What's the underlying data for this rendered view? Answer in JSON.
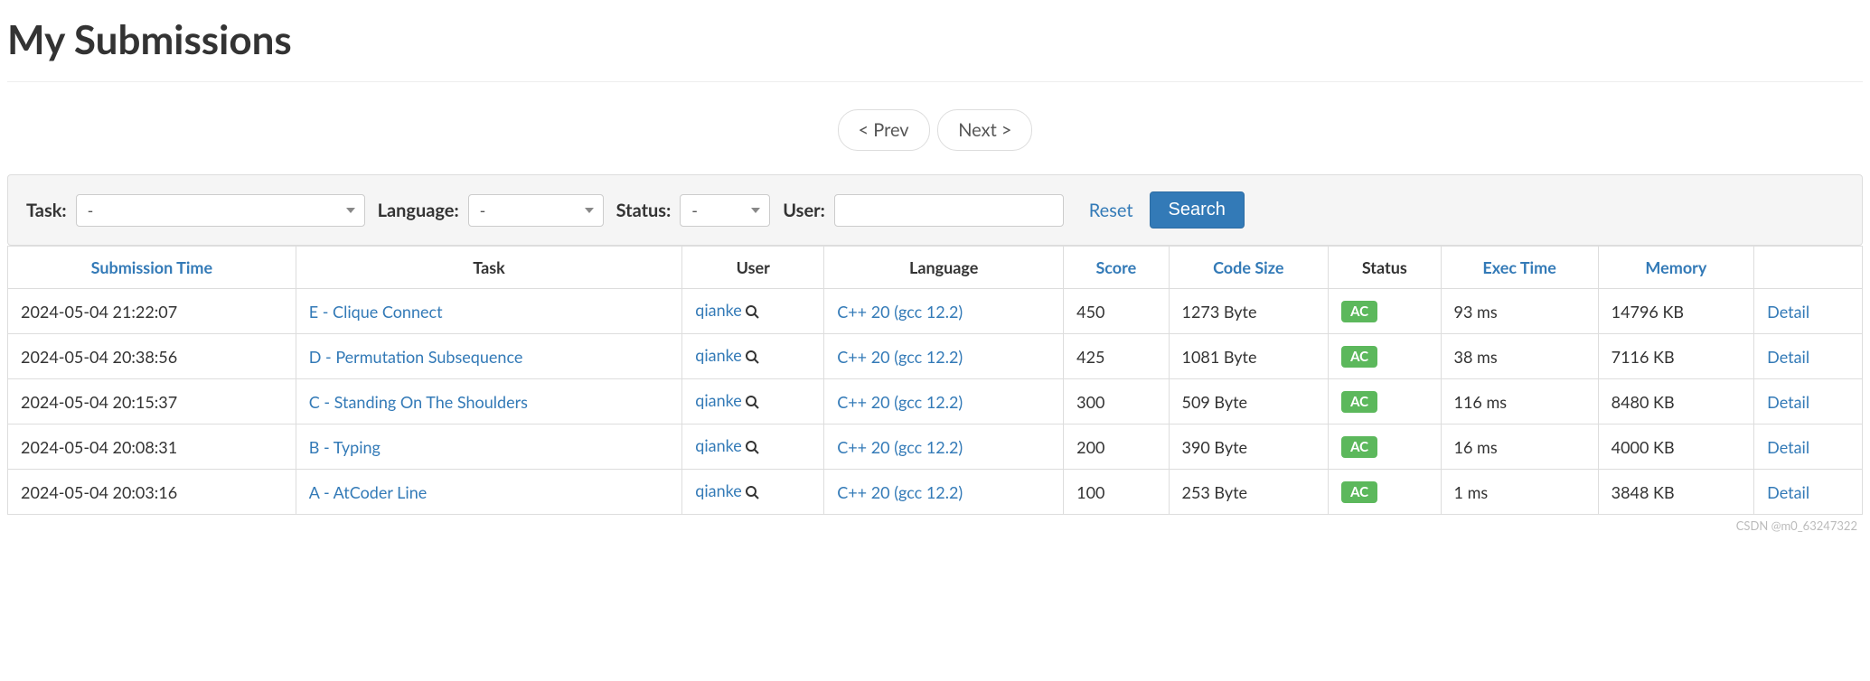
{
  "page_title": "My Submissions",
  "pager": {
    "prev": "< Prev",
    "next": "Next >"
  },
  "filters": {
    "task_label": "Task:",
    "task_value": "-",
    "language_label": "Language:",
    "language_value": "-",
    "status_label": "Status:",
    "status_value": "-",
    "user_label": "User:",
    "user_value": "",
    "reset_label": "Reset",
    "search_label": "Search"
  },
  "columns": {
    "submission_time": "Submission Time",
    "task": "Task",
    "user": "User",
    "language": "Language",
    "score": "Score",
    "code_size": "Code Size",
    "status": "Status",
    "exec_time": "Exec Time",
    "memory": "Memory"
  },
  "status_colors": {
    "AC": "#5cb85c"
  },
  "link_color": "#337ab7",
  "search_btn_color": "#337ab7",
  "rows": [
    {
      "time": "2024-05-04 21:22:07",
      "task": "E - Clique Connect",
      "user": "qianke",
      "language": "C++ 20 (gcc 12.2)",
      "score": "450",
      "code_size": "1273 Byte",
      "status": "AC",
      "exec_time": "93 ms",
      "memory": "14796 KB",
      "detail": "Detail"
    },
    {
      "time": "2024-05-04 20:38:56",
      "task": "D - Permutation Subsequence",
      "user": "qianke",
      "language": "C++ 20 (gcc 12.2)",
      "score": "425",
      "code_size": "1081 Byte",
      "status": "AC",
      "exec_time": "38 ms",
      "memory": "7116 KB",
      "detail": "Detail"
    },
    {
      "time": "2024-05-04 20:15:37",
      "task": "C - Standing On The Shoulders",
      "user": "qianke",
      "language": "C++ 20 (gcc 12.2)",
      "score": "300",
      "code_size": "509 Byte",
      "status": "AC",
      "exec_time": "116 ms",
      "memory": "8480 KB",
      "detail": "Detail"
    },
    {
      "time": "2024-05-04 20:08:31",
      "task": "B - Typing",
      "user": "qianke",
      "language": "C++ 20 (gcc 12.2)",
      "score": "200",
      "code_size": "390 Byte",
      "status": "AC",
      "exec_time": "16 ms",
      "memory": "4000 KB",
      "detail": "Detail"
    },
    {
      "time": "2024-05-04 20:03:16",
      "task": "A - AtCoder Line",
      "user": "qianke",
      "language": "C++ 20 (gcc 12.2)",
      "score": "100",
      "code_size": "253 Byte",
      "status": "AC",
      "exec_time": "1 ms",
      "memory": "3848 KB",
      "detail": "Detail"
    }
  ],
  "watermark": "CSDN @m0_63247322"
}
